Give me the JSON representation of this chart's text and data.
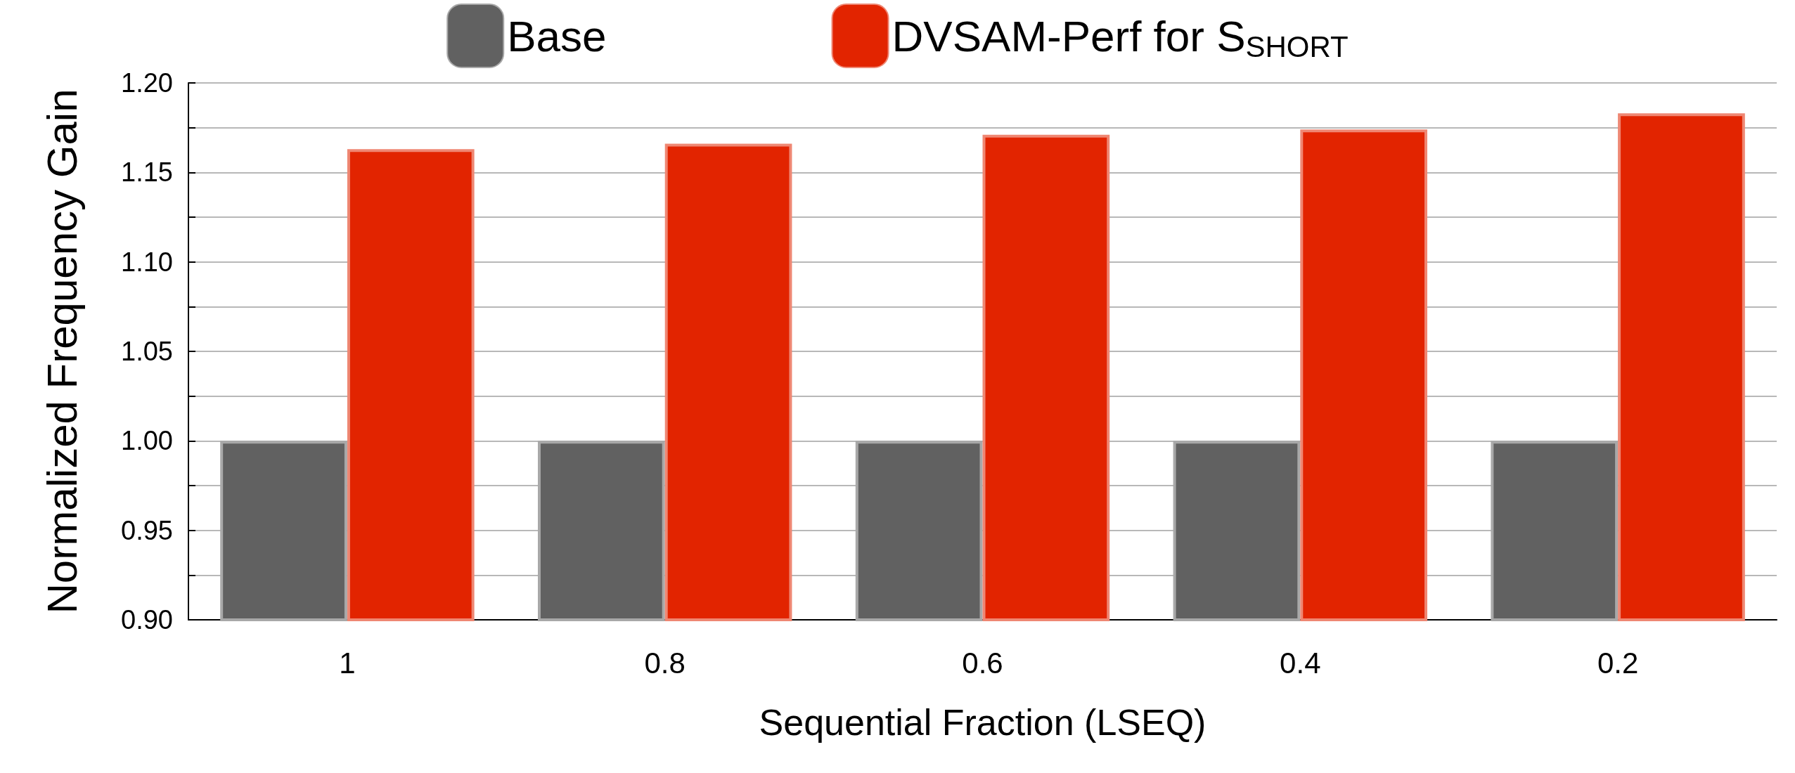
{
  "chart_data": {
    "type": "bar",
    "xlabel": "Sequential Fraction (LSEQ)",
    "ylabel": "Normalized Frequency Gain",
    "categories": [
      "1",
      "0.8",
      "0.6",
      "0.4",
      "0.2"
    ],
    "series": [
      {
        "name": "Base",
        "color": "#616161",
        "values": [
          1.0,
          1.0,
          1.0,
          1.0,
          1.0
        ]
      },
      {
        "name": "DVSAM-Perf for S$_{SHORT}$",
        "color": "#e22400",
        "values": [
          1.163,
          1.166,
          1.171,
          1.174,
          1.183
        ]
      }
    ],
    "ylim": [
      0.9,
      1.2
    ],
    "yticks": [
      {
        "value": 0.9,
        "label": "0.90"
      },
      {
        "value": 0.925,
        "label": null
      },
      {
        "value": 0.95,
        "label": "0.95"
      },
      {
        "value": 0.975,
        "label": null
      },
      {
        "value": 1.0,
        "label": "1.00"
      },
      {
        "value": 1.025,
        "label": null
      },
      {
        "value": 1.05,
        "label": "1.05"
      },
      {
        "value": 1.075,
        "label": null
      },
      {
        "value": 1.1,
        "label": "1.10"
      },
      {
        "value": 1.125,
        "label": null
      },
      {
        "value": 1.15,
        "label": "1.15"
      },
      {
        "value": 1.175,
        "label": null
      },
      {
        "value": 1.2,
        "label": "1.20"
      }
    ],
    "grid": "y",
    "legend": "top"
  }
}
